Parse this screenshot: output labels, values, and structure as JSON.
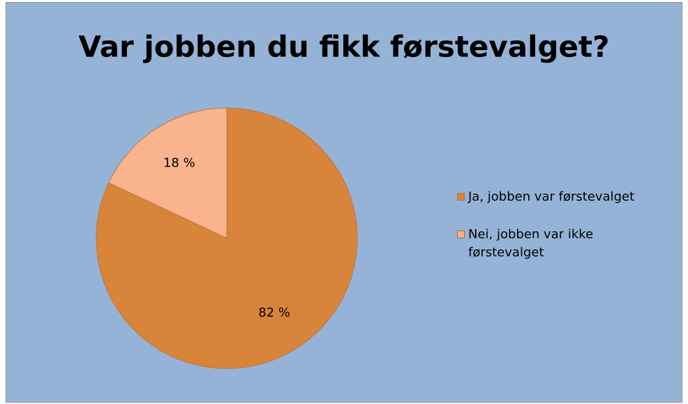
{
  "chart_data": {
    "type": "pie",
    "title": "Var jobben du fikk førstevalget?",
    "categories": [
      "Ja, jobben var førstevalget",
      "Nei, jobben var ikke førstevalget"
    ],
    "values": [
      82,
      18
    ],
    "value_labels": [
      "82 %",
      "18 %"
    ],
    "colors": [
      "#d9843b",
      "#f9b48e"
    ],
    "legend": "right"
  }
}
